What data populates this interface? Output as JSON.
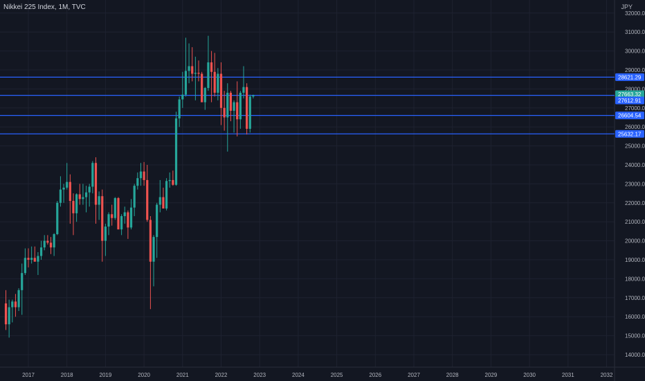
{
  "header": {
    "title": "Nikkei 225 Index, 1M, TVC",
    "currency": "JPY"
  },
  "colors": {
    "background": "#131722",
    "grid": "#1e2230",
    "up": "#26a69a",
    "down": "#ef5350",
    "level_line": "#2962ff",
    "level_tag": "#2962ff",
    "price_tag": "#26a69a",
    "axis_text": "#b2b5be"
  },
  "chart_data": {
    "type": "candlestick",
    "title": "Nikkei 225 Index, 1M, TVC",
    "ylim": [
      13600,
      32400
    ],
    "xlim": [
      2016.4,
      2032.45
    ],
    "y_ticks": [
      "14000.00",
      "15000.00",
      "16000.00",
      "17000.00",
      "18000.00",
      "19000.00",
      "20000.00",
      "21000.00",
      "22000.00",
      "23000.00",
      "24000.00",
      "25000.00",
      "26000.00",
      "27000.00",
      "28000.00",
      "29000.00",
      "30000.00",
      "31000.00",
      "32000.00"
    ],
    "x_ticks": [
      "2017",
      "2018",
      "2019",
      "2020",
      "2021",
      "2022",
      "2023",
      "2024",
      "2025",
      "2026",
      "2027",
      "2028",
      "2029",
      "2030",
      "2031",
      "2032"
    ],
    "grid": true,
    "horizontal_levels": [
      {
        "value": 28621.29,
        "label": "28621.29"
      },
      {
        "value": 27663.32,
        "label": "27663.32"
      },
      {
        "value": 26604.54,
        "label": "26604.54"
      },
      {
        "value": 25632.17,
        "label": "25632.17"
      }
    ],
    "current_price": {
      "value": 27663.32,
      "label": "27663.32"
    },
    "extra_price_tag": {
      "value": 27612.91,
      "label": "27612.91"
    },
    "candles": [
      {
        "t": "2016-06",
        "o": 16700,
        "h": 17400,
        "l": 15300,
        "c": 15600
      },
      {
        "t": "2016-07",
        "o": 15600,
        "h": 16900,
        "l": 14900,
        "c": 16500
      },
      {
        "t": "2016-08",
        "o": 16500,
        "h": 16900,
        "l": 15700,
        "c": 16800
      },
      {
        "t": "2016-09",
        "o": 16800,
        "h": 17200,
        "l": 16000,
        "c": 16500
      },
      {
        "t": "2016-10",
        "o": 16500,
        "h": 17500,
        "l": 16300,
        "c": 17400
      },
      {
        "t": "2016-11",
        "o": 17400,
        "h": 18800,
        "l": 16100,
        "c": 18300
      },
      {
        "t": "2016-12",
        "o": 18300,
        "h": 19600,
        "l": 18200,
        "c": 19100
      },
      {
        "t": "2017-01",
        "o": 19100,
        "h": 19600,
        "l": 18600,
        "c": 19000
      },
      {
        "t": "2017-02",
        "o": 19000,
        "h": 19700,
        "l": 18800,
        "c": 19100
      },
      {
        "t": "2017-03",
        "o": 19100,
        "h": 19700,
        "l": 18900,
        "c": 18900
      },
      {
        "t": "2017-04",
        "o": 18900,
        "h": 19400,
        "l": 18200,
        "c": 19200
      },
      {
        "t": "2017-05",
        "o": 19200,
        "h": 20000,
        "l": 19000,
        "c": 19650
      },
      {
        "t": "2017-06",
        "o": 19650,
        "h": 20300,
        "l": 19500,
        "c": 20000
      },
      {
        "t": "2017-07",
        "o": 20000,
        "h": 20300,
        "l": 19800,
        "c": 19900
      },
      {
        "t": "2017-08",
        "o": 19900,
        "h": 20200,
        "l": 19300,
        "c": 19650
      },
      {
        "t": "2017-09",
        "o": 19650,
        "h": 20400,
        "l": 19200,
        "c": 20350
      },
      {
        "t": "2017-10",
        "o": 20350,
        "h": 22100,
        "l": 20300,
        "c": 22000
      },
      {
        "t": "2017-11",
        "o": 22000,
        "h": 23400,
        "l": 21800,
        "c": 22700
      },
      {
        "t": "2017-12",
        "o": 22700,
        "h": 23000,
        "l": 22000,
        "c": 22800
      },
      {
        "t": "2018-01",
        "o": 22800,
        "h": 24100,
        "l": 22700,
        "c": 23100
      },
      {
        "t": "2018-02",
        "o": 23100,
        "h": 23500,
        "l": 20900,
        "c": 22100
      },
      {
        "t": "2018-03",
        "o": 22100,
        "h": 22500,
        "l": 20300,
        "c": 21450
      },
      {
        "t": "2018-04",
        "o": 21450,
        "h": 22500,
        "l": 21000,
        "c": 22450
      },
      {
        "t": "2018-05",
        "o": 22450,
        "h": 23000,
        "l": 21900,
        "c": 22200
      },
      {
        "t": "2018-06",
        "o": 22200,
        "h": 23000,
        "l": 21900,
        "c": 22300
      },
      {
        "t": "2018-07",
        "o": 22300,
        "h": 22900,
        "l": 21500,
        "c": 22550
      },
      {
        "t": "2018-08",
        "o": 22550,
        "h": 23000,
        "l": 21800,
        "c": 22850
      },
      {
        "t": "2018-09",
        "o": 22850,
        "h": 24200,
        "l": 22500,
        "c": 24100
      },
      {
        "t": "2018-10",
        "o": 24100,
        "h": 24400,
        "l": 20900,
        "c": 21900
      },
      {
        "t": "2018-11",
        "o": 21900,
        "h": 22600,
        "l": 21100,
        "c": 22350
      },
      {
        "t": "2018-12",
        "o": 22350,
        "h": 22700,
        "l": 18900,
        "c": 20000
      },
      {
        "t": "2019-01",
        "o": 20000,
        "h": 20900,
        "l": 19200,
        "c": 20750
      },
      {
        "t": "2019-02",
        "o": 20750,
        "h": 21500,
        "l": 20300,
        "c": 21400
      },
      {
        "t": "2019-03",
        "o": 21400,
        "h": 21900,
        "l": 20800,
        "c": 21200
      },
      {
        "t": "2019-04",
        "o": 21200,
        "h": 22300,
        "l": 21100,
        "c": 22250
      },
      {
        "t": "2019-05",
        "o": 22250,
        "h": 22300,
        "l": 20600,
        "c": 20600
      },
      {
        "t": "2019-06",
        "o": 20600,
        "h": 21400,
        "l": 20300,
        "c": 21300
      },
      {
        "t": "2019-07",
        "o": 21300,
        "h": 21800,
        "l": 20900,
        "c": 21500
      },
      {
        "t": "2019-08",
        "o": 21500,
        "h": 21600,
        "l": 20100,
        "c": 20700
      },
      {
        "t": "2019-09",
        "o": 20700,
        "h": 22200,
        "l": 20600,
        "c": 21750
      },
      {
        "t": "2019-10",
        "o": 21750,
        "h": 23000,
        "l": 21300,
        "c": 22900
      },
      {
        "t": "2019-11",
        "o": 22900,
        "h": 23600,
        "l": 22700,
        "c": 23300
      },
      {
        "t": "2019-12",
        "o": 23300,
        "h": 24100,
        "l": 22900,
        "c": 23650
      },
      {
        "t": "2020-01",
        "o": 23650,
        "h": 24150,
        "l": 22900,
        "c": 23200
      },
      {
        "t": "2020-02",
        "o": 23200,
        "h": 24000,
        "l": 21000,
        "c": 21100
      },
      {
        "t": "2020-03",
        "o": 21100,
        "h": 21300,
        "l": 16400,
        "c": 18900
      },
      {
        "t": "2020-04",
        "o": 18900,
        "h": 20300,
        "l": 17600,
        "c": 20200
      },
      {
        "t": "2020-05",
        "o": 20200,
        "h": 22000,
        "l": 19100,
        "c": 21900
      },
      {
        "t": "2020-06",
        "o": 21900,
        "h": 23200,
        "l": 21500,
        "c": 22300
      },
      {
        "t": "2020-07",
        "o": 22300,
        "h": 22800,
        "l": 21700,
        "c": 21700
      },
      {
        "t": "2020-08",
        "o": 21700,
        "h": 23300,
        "l": 21600,
        "c": 23150
      },
      {
        "t": "2020-09",
        "o": 23150,
        "h": 23600,
        "l": 22800,
        "c": 23200
      },
      {
        "t": "2020-10",
        "o": 23200,
        "h": 23700,
        "l": 22900,
        "c": 22950
      },
      {
        "t": "2020-11",
        "o": 22950,
        "h": 26800,
        "l": 22900,
        "c": 26450
      },
      {
        "t": "2020-12",
        "o": 26450,
        "h": 27600,
        "l": 26000,
        "c": 27450
      },
      {
        "t": "2021-01",
        "o": 27450,
        "h": 28900,
        "l": 27000,
        "c": 27700
      },
      {
        "t": "2021-02",
        "o": 27700,
        "h": 30700,
        "l": 27600,
        "c": 28950
      },
      {
        "t": "2021-03",
        "o": 28950,
        "h": 30400,
        "l": 28300,
        "c": 29200
      },
      {
        "t": "2021-04",
        "o": 29200,
        "h": 30200,
        "l": 28400,
        "c": 28800
      },
      {
        "t": "2021-05",
        "o": 28800,
        "h": 29700,
        "l": 27400,
        "c": 28850
      },
      {
        "t": "2021-06",
        "o": 28850,
        "h": 29500,
        "l": 28400,
        "c": 28800
      },
      {
        "t": "2021-07",
        "o": 28800,
        "h": 28900,
        "l": 27300,
        "c": 27300
      },
      {
        "t": "2021-08",
        "o": 27300,
        "h": 28100,
        "l": 26900,
        "c": 28050
      },
      {
        "t": "2021-09",
        "o": 28050,
        "h": 30800,
        "l": 27900,
        "c": 29400
      },
      {
        "t": "2021-10",
        "o": 29400,
        "h": 30000,
        "l": 27300,
        "c": 28900
      },
      {
        "t": "2021-11",
        "o": 28900,
        "h": 29900,
        "l": 27600,
        "c": 27800
      },
      {
        "t": "2021-12",
        "o": 27800,
        "h": 29100,
        "l": 27400,
        "c": 28800
      },
      {
        "t": "2022-01",
        "o": 28800,
        "h": 29400,
        "l": 26100,
        "c": 27000
      },
      {
        "t": "2022-02",
        "o": 27000,
        "h": 27900,
        "l": 25800,
        "c": 26500
      },
      {
        "t": "2022-03",
        "o": 26500,
        "h": 28300,
        "l": 24700,
        "c": 27800
      },
      {
        "t": "2022-04",
        "o": 27800,
        "h": 27900,
        "l": 26300,
        "c": 26850
      },
      {
        "t": "2022-05",
        "o": 26850,
        "h": 27400,
        "l": 25700,
        "c": 27300
      },
      {
        "t": "2022-06",
        "o": 27300,
        "h": 28400,
        "l": 25500,
        "c": 26400
      },
      {
        "t": "2022-07",
        "o": 26400,
        "h": 27900,
        "l": 25900,
        "c": 27800
      },
      {
        "t": "2022-08",
        "o": 27800,
        "h": 29200,
        "l": 27500,
        "c": 28100
      },
      {
        "t": "2022-09",
        "o": 28100,
        "h": 28300,
        "l": 25600,
        "c": 25900
      },
      {
        "t": "2022-10",
        "o": 25900,
        "h": 27700,
        "l": 25700,
        "c": 27600
      },
      {
        "t": "2022-11",
        "o": 27600,
        "h": 27700,
        "l": 27500,
        "c": 27663.32
      }
    ]
  }
}
